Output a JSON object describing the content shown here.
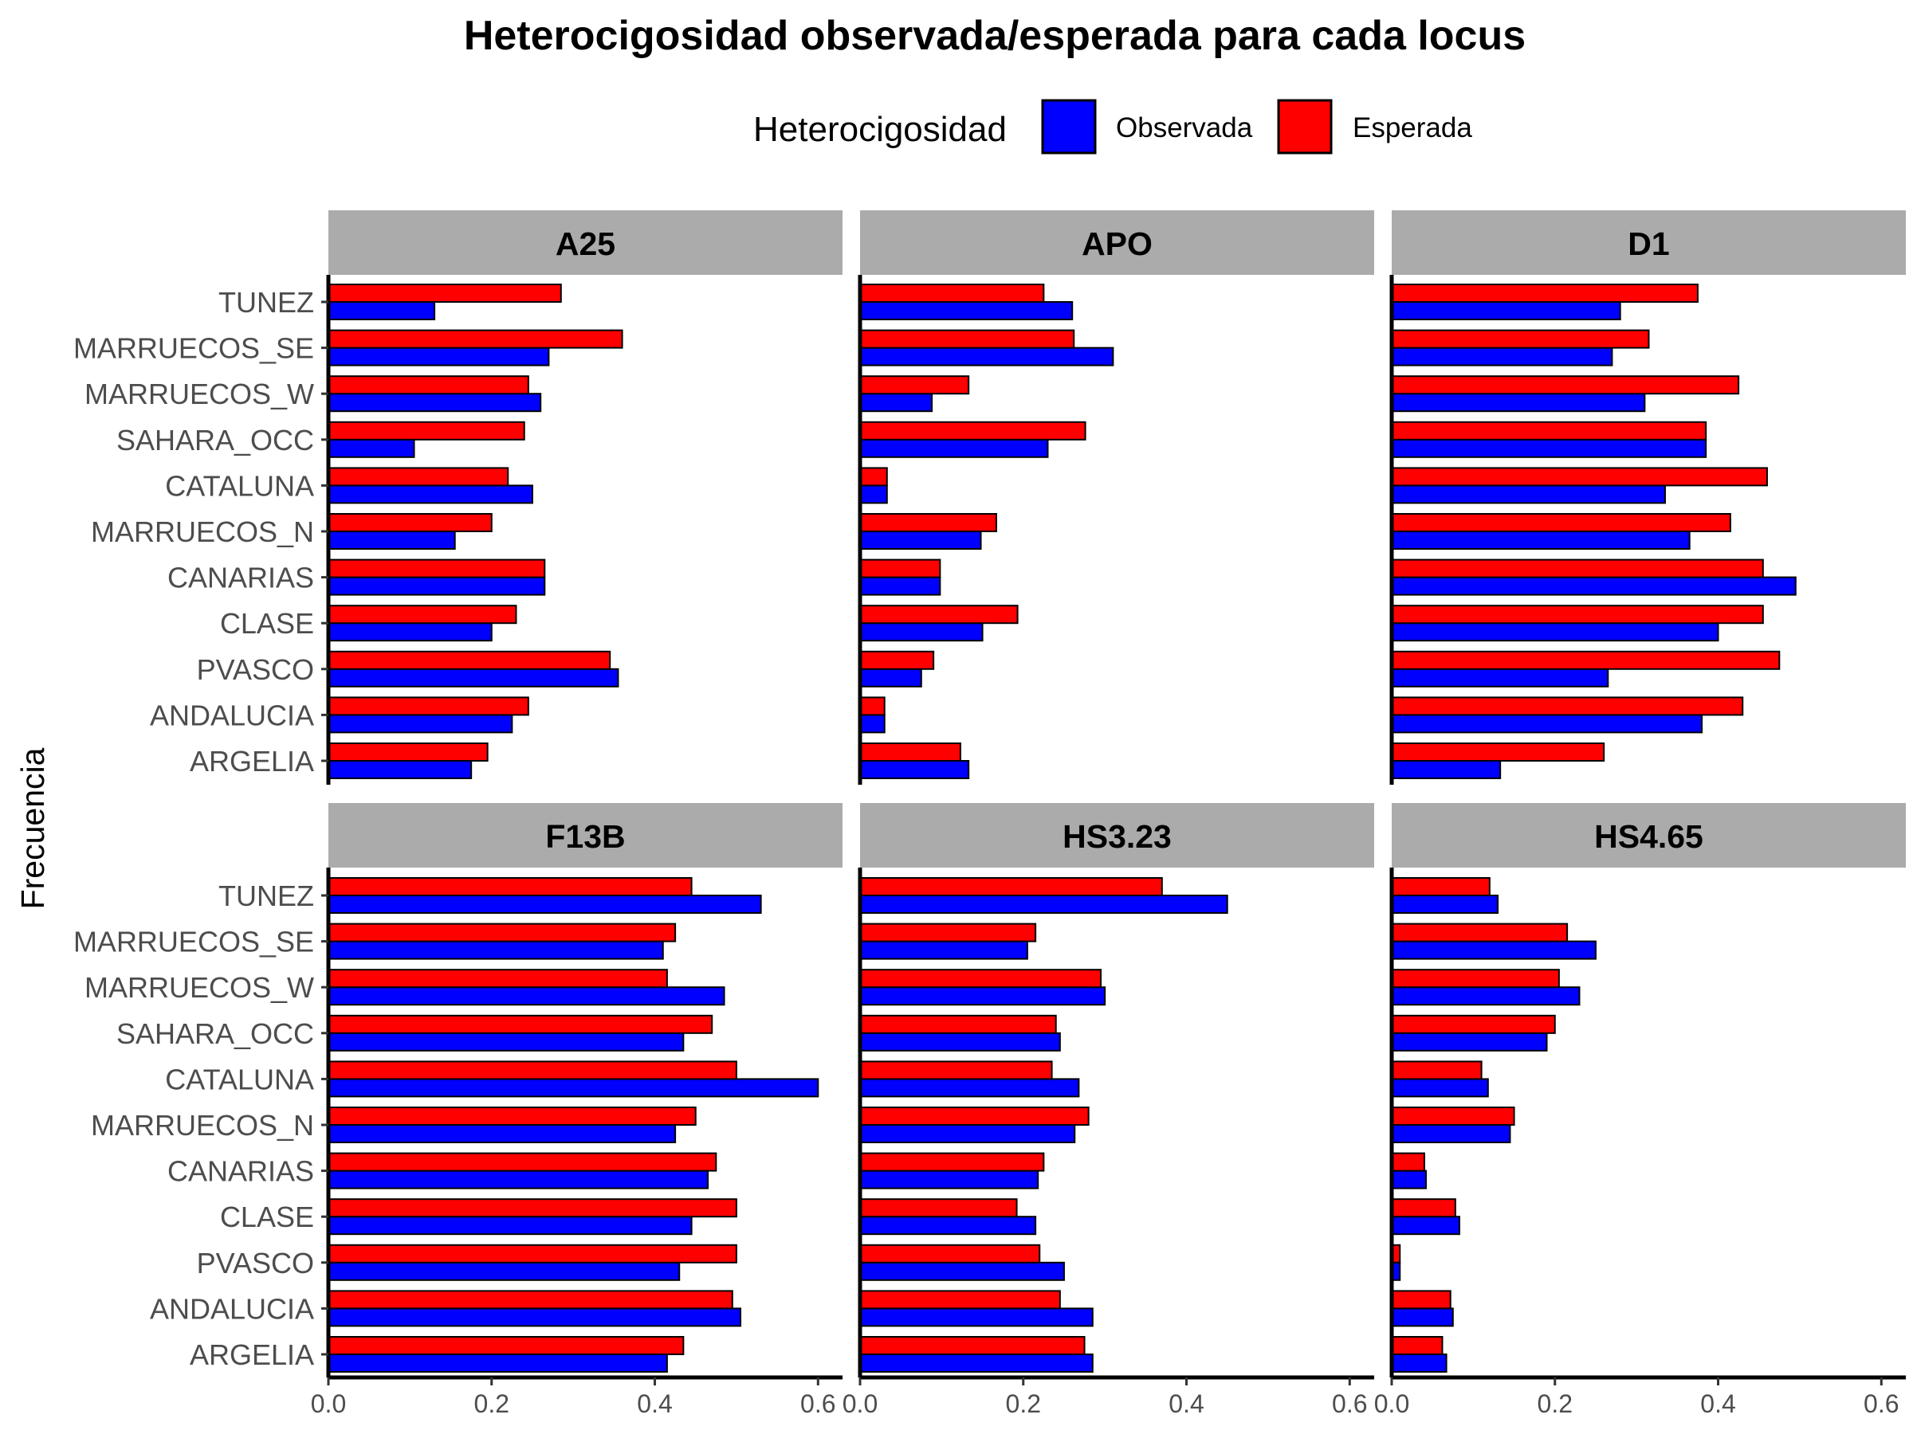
{
  "chart_data": {
    "type": "bar",
    "orientation": "horizontal",
    "title": "Heterocigosidad observada/esperada para cada locus",
    "ylabel": "Frecuencia",
    "xlabel": "",
    "xlim": [
      0,
      0.63
    ],
    "x_ticks": [
      "0.0",
      "0.2",
      "0.4",
      "0.6"
    ],
    "grid": false,
    "legend": {
      "title": "Heterocigosidad",
      "position": "top",
      "entries": [
        {
          "label": "Observada",
          "color": "#0000ff"
        },
        {
          "label": "Esperada",
          "color": "#ff0000"
        }
      ]
    },
    "categories": [
      "TUNEZ",
      "MARRUECOS_SE",
      "MARRUECOS_W",
      "SAHARA_OCC",
      "CATALUNA",
      "MARRUECOS_N",
      "CANARIAS",
      "CLASE",
      "PVASCO",
      "ANDALUCIA",
      "ARGELIA"
    ],
    "panels": [
      {
        "locus": "A25",
        "series": [
          {
            "name": "Observada",
            "values": [
              0.13,
              0.27,
              0.26,
              0.105,
              0.25,
              0.155,
              0.265,
              0.2,
              0.355,
              0.225,
              0.175
            ]
          },
          {
            "name": "Esperada",
            "values": [
              0.285,
              0.36,
              0.245,
              0.24,
              0.22,
              0.2,
              0.265,
              0.23,
              0.345,
              0.245,
              0.195
            ]
          }
        ]
      },
      {
        "locus": "APO",
        "series": [
          {
            "name": "Observada",
            "values": [
              0.26,
              0.31,
              0.088,
              0.23,
              0.033,
              0.148,
              0.098,
              0.15,
              0.075,
              0.03,
              0.133
            ]
          },
          {
            "name": "Esperada",
            "values": [
              0.225,
              0.262,
              0.133,
              0.276,
              0.033,
              0.167,
              0.098,
              0.193,
              0.09,
              0.03,
              0.123
            ]
          }
        ]
      },
      {
        "locus": "D1",
        "series": [
          {
            "name": "Observada",
            "values": [
              0.28,
              0.27,
              0.31,
              0.385,
              0.335,
              0.365,
              0.495,
              0.4,
              0.265,
              0.38,
              0.133
            ]
          },
          {
            "name": "Esperada",
            "values": [
              0.375,
              0.315,
              0.425,
              0.385,
              0.46,
              0.415,
              0.455,
              0.455,
              0.475,
              0.43,
              0.26
            ]
          }
        ]
      },
      {
        "locus": "F13B",
        "series": [
          {
            "name": "Observada",
            "values": [
              0.53,
              0.41,
              0.485,
              0.435,
              0.6,
              0.425,
              0.465,
              0.445,
              0.43,
              0.505,
              0.415
            ]
          },
          {
            "name": "Esperada",
            "values": [
              0.445,
              0.425,
              0.415,
              0.47,
              0.5,
              0.45,
              0.475,
              0.5,
              0.5,
              0.495,
              0.435
            ]
          }
        ]
      },
      {
        "locus": "HS3.23",
        "series": [
          {
            "name": "Observada",
            "values": [
              0.45,
              0.205,
              0.3,
              0.245,
              0.268,
              0.263,
              0.218,
              0.215,
              0.25,
              0.285,
              0.285
            ]
          },
          {
            "name": "Esperada",
            "values": [
              0.37,
              0.215,
              0.295,
              0.24,
              0.235,
              0.28,
              0.225,
              0.192,
              0.22,
              0.245,
              0.275
            ]
          }
        ]
      },
      {
        "locus": "HS4.65",
        "series": [
          {
            "name": "Observada",
            "values": [
              0.13,
              0.25,
              0.23,
              0.19,
              0.118,
              0.145,
              0.042,
              0.083,
              0.01,
              0.075,
              0.067
            ]
          },
          {
            "name": "Esperada",
            "values": [
              0.12,
              0.215,
              0.205,
              0.2,
              0.11,
              0.15,
              0.04,
              0.078,
              0.01,
              0.072,
              0.062
            ]
          }
        ]
      }
    ]
  }
}
